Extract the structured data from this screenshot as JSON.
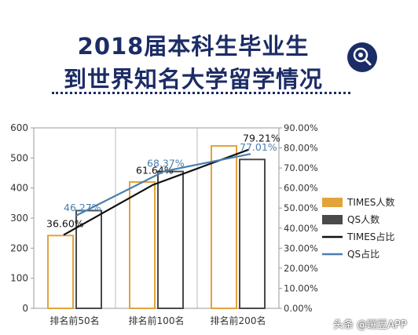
{
  "title": {
    "line1": "2018届本科生毕业生",
    "line2": "到世界知名大学留学情况"
  },
  "icon": "search-gear-icon",
  "watermark": "头条 @蹦豆APP",
  "chart_data": {
    "type": "bar",
    "categories": [
      "排名前50名",
      "排名前100名",
      "排名前200名"
    ],
    "series": [
      {
        "name": "TIMES人数",
        "kind": "bar",
        "axis": "left",
        "color": "#e2a33a",
        "values": [
          242,
          420,
          540
        ]
      },
      {
        "name": "QS人数",
        "kind": "bar",
        "axis": "left",
        "color": "#4a4a4a",
        "values": [
          325,
          455,
          495
        ]
      },
      {
        "name": "TIMES占比",
        "kind": "line",
        "axis": "right",
        "color": "#111111",
        "values": [
          36.6,
          61.64,
          79.21
        ],
        "labels": [
          "36.60%",
          "61.64%",
          "79.21%"
        ]
      },
      {
        "name": "QS占比",
        "kind": "line",
        "axis": "right",
        "color": "#4a7eb0",
        "values": [
          46.27,
          68.37,
          77.01
        ],
        "labels": [
          "46.27%",
          "68.37%",
          "77.01%"
        ]
      }
    ],
    "y_left": {
      "min": 0,
      "max": 600,
      "ticks": [
        "0",
        "100",
        "200",
        "300",
        "400",
        "500",
        "600"
      ]
    },
    "y_right": {
      "min": 0,
      "max": 90,
      "ticks": [
        "0.00%",
        "10.00%",
        "20.00%",
        "30.00%",
        "40.00%",
        "50.00%",
        "60.00%",
        "70.00%",
        "80.00%",
        "90.00%"
      ]
    },
    "grid": "vertical",
    "legend": "right"
  }
}
